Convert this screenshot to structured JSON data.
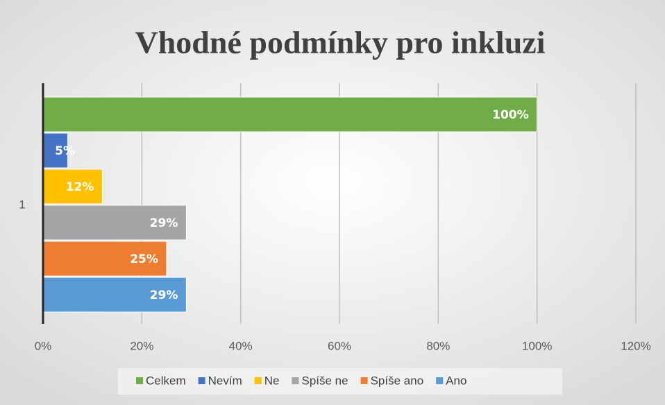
{
  "chart_data": {
    "type": "hbar",
    "title": "Vhodné podmínky pro inkluzi",
    "categories": [
      "1"
    ],
    "series": [
      {
        "name": "Celkem",
        "color": "#70ad47",
        "values": [
          100
        ],
        "value_labels": [
          "100%"
        ]
      },
      {
        "name": "Nevím",
        "color": "#4472c4",
        "values": [
          5
        ],
        "value_labels": [
          "5%"
        ]
      },
      {
        "name": "Ne",
        "color": "#ffc000",
        "values": [
          12
        ],
        "value_labels": [
          "12%"
        ]
      },
      {
        "name": "Spíše ne",
        "color": "#a5a5a5",
        "values": [
          29
        ],
        "value_labels": [
          "29%"
        ]
      },
      {
        "name": "Spíše ano",
        "color": "#ed7d31",
        "values": [
          25
        ],
        "value_labels": [
          "25%"
        ]
      },
      {
        "name": "Ano",
        "color": "#5b9bd5",
        "values": [
          29
        ],
        "value_labels": [
          "29%"
        ]
      }
    ],
    "xlim": [
      0,
      120
    ],
    "xticks": [
      {
        "value": 0,
        "label": "0%"
      },
      {
        "value": 20,
        "label": "20%"
      },
      {
        "value": 40,
        "label": "40%"
      },
      {
        "value": 60,
        "label": "60%"
      },
      {
        "value": 80,
        "label": "80%"
      },
      {
        "value": 100,
        "label": "100%"
      },
      {
        "value": 120,
        "label": "120%"
      }
    ],
    "grid": true,
    "legend": "bottom"
  }
}
